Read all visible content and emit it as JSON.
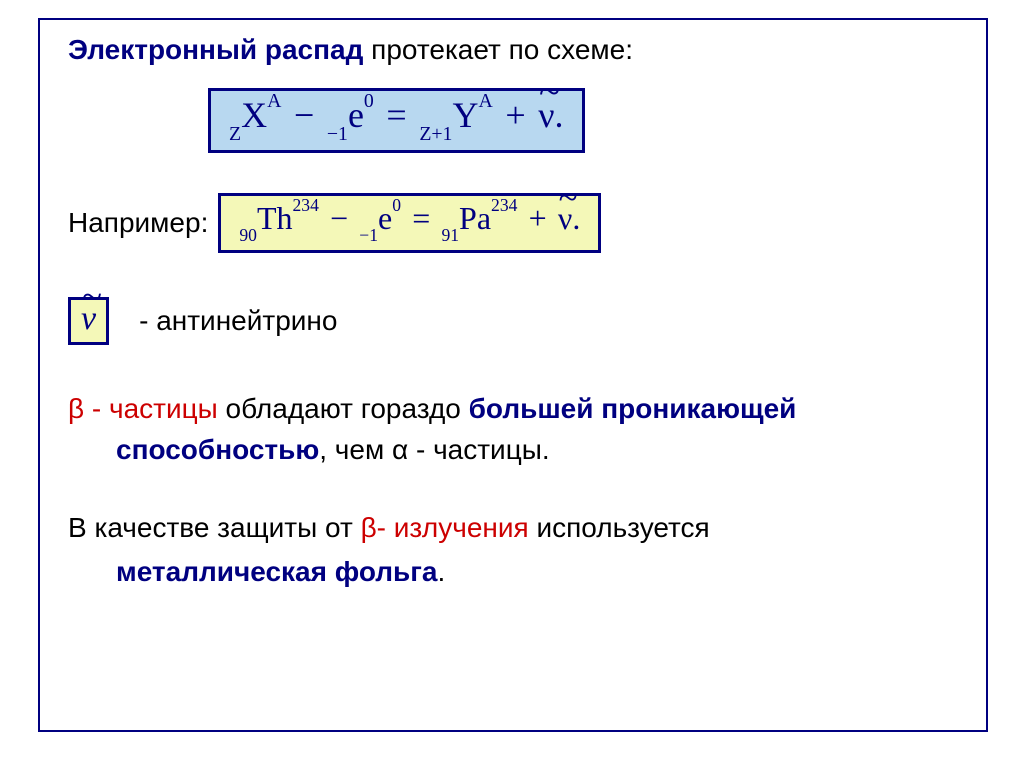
{
  "colors": {
    "frame_border": "#000080",
    "blue_box_bg": "#b8d8f0",
    "yellow_box_bg": "#f4f8b8",
    "navy_text": "#000080",
    "red_text": "#cc0000",
    "black_text": "#000000",
    "page_bg": "#ffffff"
  },
  "typography": {
    "body_font": "Arial",
    "formula_font": "Times New Roman",
    "body_size_pt": 21,
    "formula_size_pt": 27
  },
  "title": {
    "bold": "Электронный распад",
    "rest": "  протекает по схеме:"
  },
  "general_formula": {
    "reactant1": {
      "presub": "Z",
      "symbol": "X",
      "sup": "A"
    },
    "minus": "−",
    "reactant2": {
      "presub": "−1",
      "symbol": "e",
      "sup": "0"
    },
    "equals": "=",
    "product1": {
      "presub": "Z+1",
      "symbol": "Y",
      "sup": "A"
    },
    "plus": "+",
    "product2": {
      "tilde": "~",
      "symbol": "ν",
      "period": "."
    }
  },
  "example_label": "Например:",
  "example_formula": {
    "reactant1": {
      "presub": "90",
      "symbol": "Th",
      "sup": "234"
    },
    "minus": "−",
    "reactant2": {
      "presub": "−1",
      "symbol": "e",
      "sup": "0"
    },
    "equals": "=",
    "product1": {
      "presub": "91",
      "symbol": "Pa",
      "sup": "234"
    },
    "plus": "+",
    "product2": {
      "tilde": "~",
      "symbol": "ν",
      "period": "."
    }
  },
  "antineutrino": {
    "symbol": {
      "tilde": "~",
      "nu": "ν"
    },
    "label": "- антинейтрино"
  },
  "paragraph1": {
    "beta_dash": "β - частицы",
    "mid": " обладают гораздо ",
    "navy1": "большей проникающей",
    "navy2": "способностью",
    "tail": ", чем α - частицы."
  },
  "paragraph2": {
    "lead": "В качестве защиты от  ",
    "red": "β- излучения",
    "mid": " используется",
    "navy": "металлическая фольга",
    "period": "."
  }
}
